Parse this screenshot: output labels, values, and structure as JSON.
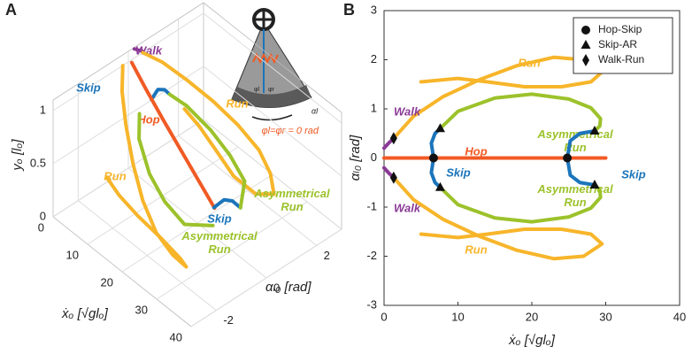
{
  "chart_data": [
    {
      "type": "line3d",
      "panel": "A",
      "xlabel": "ẋₒ [√glₒ]",
      "ylabel": "αₗ₀ [rad]",
      "zlabel": "yₒ [lₒ]",
      "xlim": [
        0,
        40
      ],
      "ylim": [
        -3,
        3
      ],
      "zlim": [
        0,
        1.1
      ],
      "xticks": [
        0,
        10,
        20,
        30,
        40
      ],
      "yticks": [
        -2,
        0,
        2
      ],
      "zticks": [
        0,
        0.5,
        1
      ],
      "inset_label": "φl=φr = 0 rad",
      "inset_labels": [
        "φl",
        "φr",
        "αl"
      ],
      "series": [
        {
          "name": "Walk",
          "color": "#8b3a96",
          "x": [
            0.3,
            1.2
          ],
          "y": [
            0.2,
            0.4
          ],
          "z": [
            1.1,
            1.07
          ]
        },
        {
          "name": "Skip",
          "color": "#1b75bb",
          "x": [
            6.7,
            6.4,
            6.9,
            7.6
          ],
          "y": [
            0,
            0.3,
            0.5,
            0.6
          ],
          "z": [
            0.82,
            0.86,
            0.84,
            0.8
          ]
        },
        {
          "name": "Hop",
          "color": "#f15a24",
          "x": [
            1,
            5,
            10,
            15,
            20,
            25
          ],
          "y": [
            0,
            0,
            0,
            0,
            0,
            0
          ],
          "z": [
            1.02,
            0.88,
            0.72,
            0.57,
            0.42,
            0.27
          ]
        },
        {
          "name": "Run",
          "color": "#f7b52a",
          "x": [
            1.3,
            4,
            8,
            13,
            18,
            23,
            27,
            29.5,
            26,
            20,
            14,
            9,
            5
          ],
          "y": [
            0.4,
            0.8,
            1.2,
            1.6,
            1.9,
            2.05,
            1.95,
            1.75,
            1.5,
            1.45,
            1.55,
            1.6,
            1.55
          ],
          "z": [
            1.06,
            0.98,
            0.86,
            0.72,
            0.58,
            0.45,
            0.35,
            0.25,
            0.2,
            0.22,
            0.3,
            0.38,
            0.45
          ]
        },
        {
          "name": "Run",
          "color": "#f7b52a",
          "x": [
            1.3,
            4,
            8,
            13,
            18,
            23,
            27,
            29.5,
            26,
            20,
            14,
            9,
            5
          ],
          "y": [
            -0.4,
            -0.8,
            -1.2,
            -1.6,
            -1.9,
            -2.05,
            -1.95,
            -1.75,
            -1.5,
            -1.45,
            -1.55,
            -1.6,
            -1.55
          ],
          "z": [
            1.06,
            0.95,
            0.8,
            0.62,
            0.45,
            0.3,
            0.18,
            0.1,
            0.05,
            0.08,
            0.15,
            0.22,
            0.28
          ]
        },
        {
          "name": "Skip",
          "color": "#1b75bb",
          "x": [
            24.8,
            25.2,
            26.5,
            28.5
          ],
          "y": [
            0,
            0.35,
            0.5,
            0.55
          ],
          "z": [
            0.27,
            0.3,
            0.3,
            0.28
          ]
        },
        {
          "name": "Asymmetrical Run",
          "color": "#9cc22b",
          "x": [
            7.6,
            10,
            15,
            20,
            25,
            28.5
          ],
          "y": [
            0.6,
            0.95,
            1.22,
            1.3,
            1.2,
            0.55
          ],
          "z": [
            0.8,
            0.7,
            0.56,
            0.44,
            0.34,
            0.28
          ]
        },
        {
          "name": "Asymmetrical Run",
          "color": "#9cc22b",
          "x": [
            7.6,
            10,
            15,
            20,
            25,
            28.5
          ],
          "y": [
            -0.6,
            -0.95,
            -1.22,
            -1.3,
            -1.2,
            -0.55
          ],
          "z": [
            0.8,
            0.68,
            0.52,
            0.4,
            0.3,
            0.28
          ]
        }
      ]
    },
    {
      "type": "line",
      "panel": "B",
      "xlabel": "ẋₒ [√glₒ]",
      "ylabel": "αₗ₀ [rad]",
      "xlim": [
        0,
        40
      ],
      "ylim": [
        -3,
        3
      ],
      "xticks": [
        0,
        10,
        20,
        30,
        40
      ],
      "yticks": [
        -3,
        -2,
        -1,
        0,
        1,
        2,
        3
      ],
      "series": [
        {
          "name": "Run",
          "color": "#f7b52a",
          "x": [
            1.3,
            4,
            8,
            13,
            18,
            23,
            27,
            29.5,
            28,
            24,
            19,
            14,
            10,
            5
          ],
          "y": [
            0.4,
            0.85,
            1.25,
            1.6,
            1.88,
            2.05,
            2.0,
            1.75,
            1.55,
            1.45,
            1.45,
            1.55,
            1.62,
            1.55
          ]
        },
        {
          "name": "Walk",
          "color": "#8b3a96",
          "x": [
            0,
            0.6,
            1.3
          ],
          "y": [
            0.2,
            0.3,
            0.4
          ]
        },
        {
          "name": "Asymmetrical Run",
          "color": "#9cc22b",
          "x": [
            7.6,
            10,
            15,
            20,
            25,
            28,
            29.3,
            29.2,
            28.5
          ],
          "y": [
            0.6,
            0.95,
            1.22,
            1.3,
            1.2,
            1.02,
            0.8,
            0.65,
            0.55
          ]
        },
        {
          "name": "Hop",
          "color": "#f15a24",
          "x": [
            0,
            30
          ],
          "y": [
            0,
            0
          ]
        },
        {
          "name": "Skip",
          "color": "#1b75bb",
          "x": [
            7.6,
            6.9,
            6.4,
            6.7,
            6.4,
            6.9,
            7.6
          ],
          "y": [
            0.6,
            0.5,
            0.3,
            0,
            -0.3,
            -0.5,
            -0.6
          ]
        },
        {
          "name": "Skip",
          "color": "#1b75bb",
          "x": [
            28.5,
            26.5,
            25.2,
            24.8,
            25.2,
            26.5,
            28.5
          ],
          "y": [
            0.55,
            0.5,
            0.35,
            0,
            -0.35,
            -0.5,
            -0.55
          ]
        },
        {
          "name": "Asymmetrical Run",
          "color": "#9cc22b",
          "x": [
            7.6,
            10,
            15,
            20,
            25,
            28,
            29.3,
            29.2,
            28.5
          ],
          "y": [
            -0.6,
            -0.95,
            -1.22,
            -1.3,
            -1.2,
            -1.02,
            -0.8,
            -0.65,
            -0.55
          ]
        },
        {
          "name": "Walk",
          "color": "#8b3a96",
          "x": [
            0,
            0.6,
            1.3
          ],
          "y": [
            -0.2,
            -0.3,
            -0.4
          ]
        },
        {
          "name": "Run",
          "color": "#f7b52a",
          "x": [
            1.3,
            4,
            8,
            13,
            18,
            23,
            27,
            29.5,
            28,
            24,
            19,
            14,
            10,
            5
          ],
          "y": [
            -0.4,
            -0.85,
            -1.25,
            -1.6,
            -1.88,
            -2.05,
            -2.0,
            -1.75,
            -1.55,
            -1.45,
            -1.45,
            -1.55,
            -1.62,
            -1.55
          ]
        }
      ],
      "markers": [
        {
          "name": "Hop-Skip",
          "shape": "circle",
          "x": [
            6.7,
            24.8
          ],
          "y": [
            0,
            0
          ]
        },
        {
          "name": "Skip-AR",
          "shape": "triangle",
          "x": [
            7.6,
            7.6,
            28.5,
            28.5
          ],
          "y": [
            0.6,
            -0.6,
            0.55,
            -0.55
          ]
        },
        {
          "name": "Walk-Run",
          "shape": "diamond",
          "x": [
            1.3,
            1.3
          ],
          "y": [
            0.4,
            -0.4
          ]
        }
      ],
      "legend": "upper right"
    }
  ]
}
